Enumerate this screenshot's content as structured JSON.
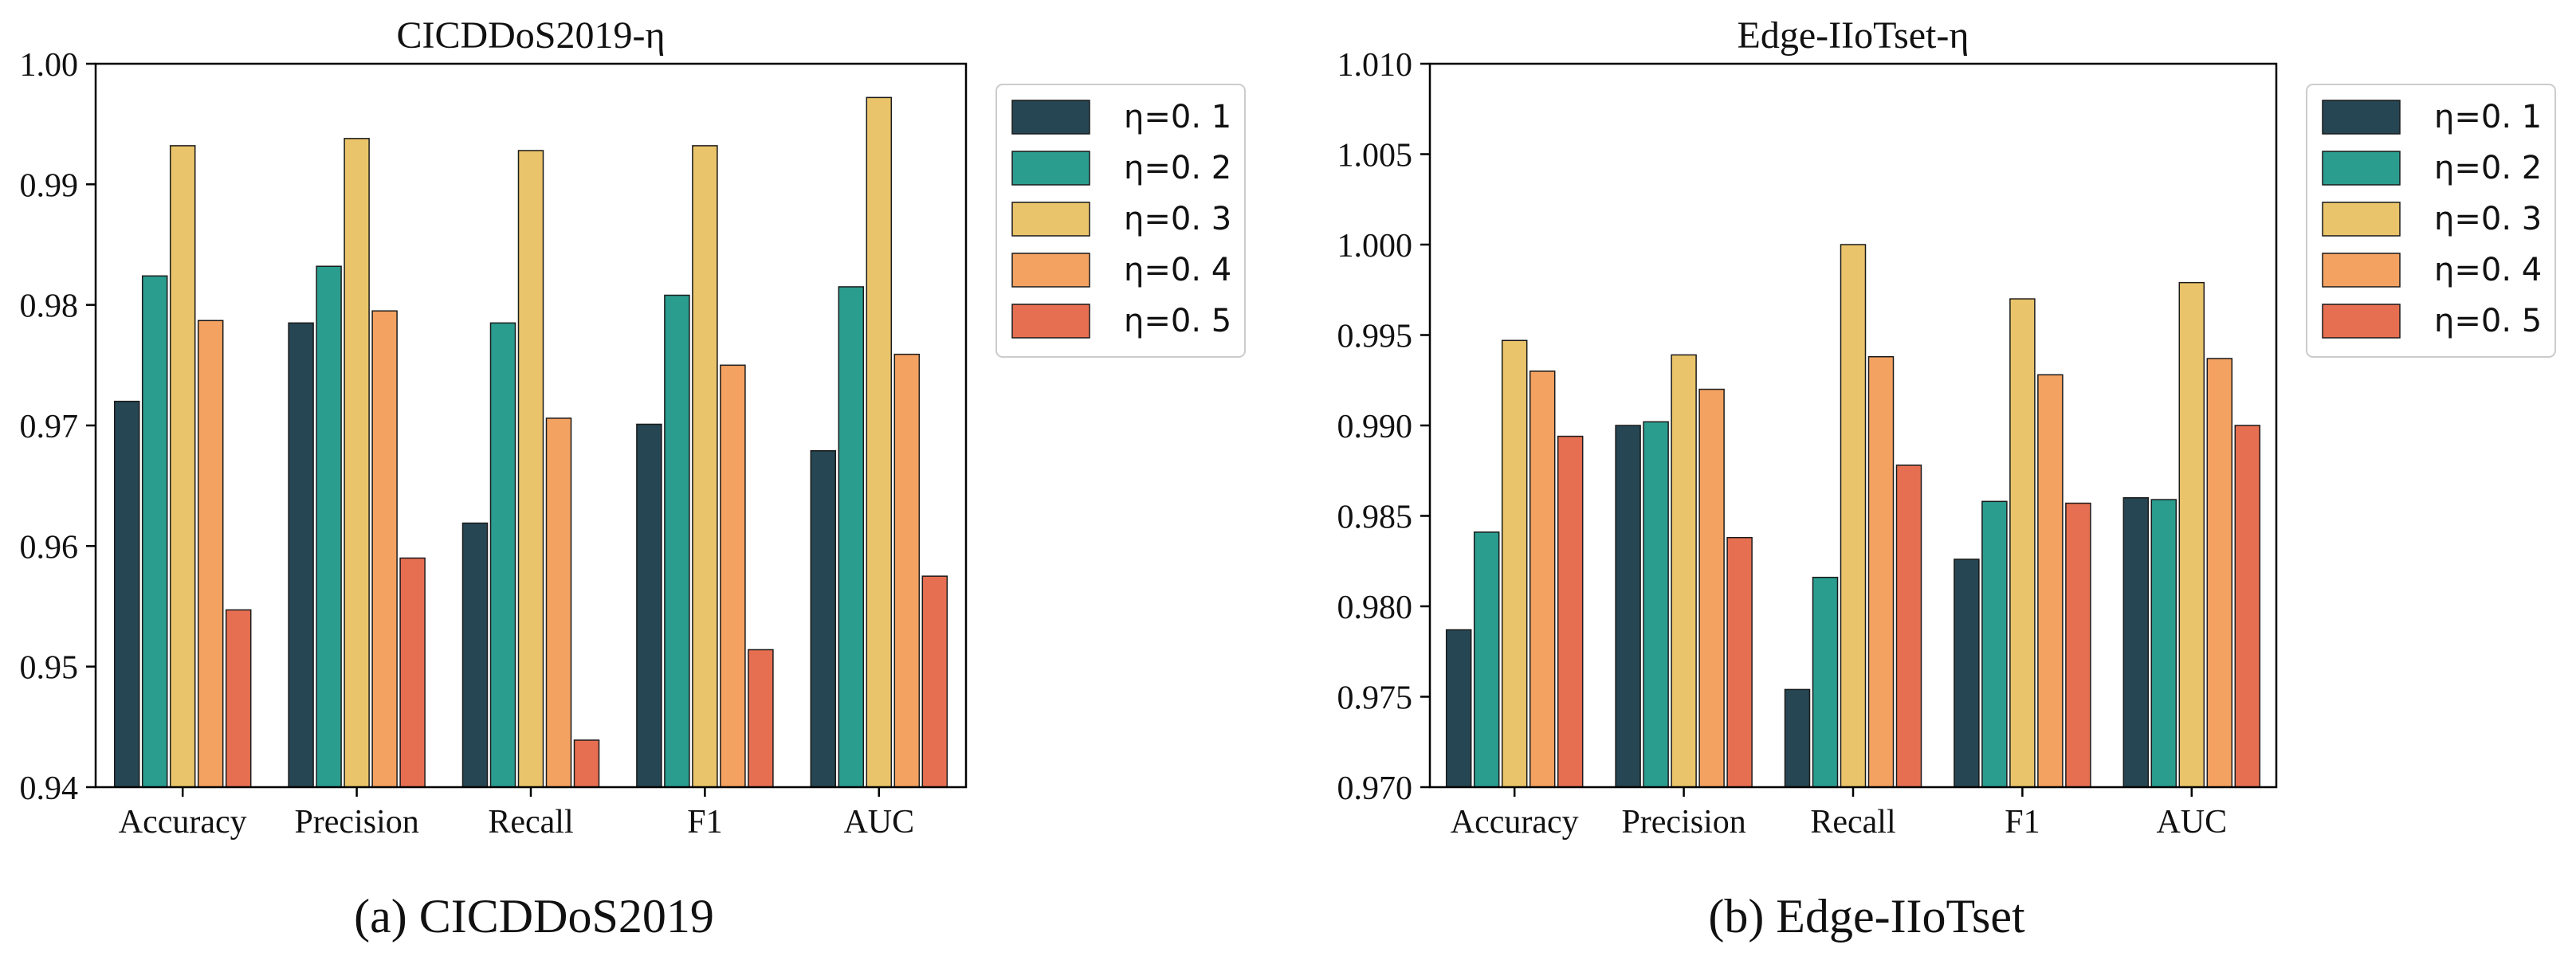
{
  "chart_data": [
    {
      "type": "bar",
      "title": "CICDDoS2019-η",
      "caption": "(a) CICDDoS2019",
      "categories": [
        "Accuracy",
        "Precision",
        "Recall",
        "F1",
        "AUC"
      ],
      "series": [
        {
          "name": "η=0. 1",
          "color": "#264653",
          "values": [
            0.972,
            0.9785,
            0.9619,
            0.9701,
            0.9679
          ]
        },
        {
          "name": "η=0. 2",
          "color": "#2A9D8F",
          "values": [
            0.9824,
            0.9832,
            0.9785,
            0.9808,
            0.9815
          ]
        },
        {
          "name": "η=0. 3",
          "color": "#E9C46A",
          "values": [
            0.9932,
            0.9938,
            0.9928,
            0.9932,
            0.9972
          ]
        },
        {
          "name": "η=0. 4",
          "color": "#F4A261",
          "values": [
            0.9787,
            0.9795,
            0.9706,
            0.975,
            0.9759
          ]
        },
        {
          "name": "η=0. 5",
          "color": "#E76F51",
          "values": [
            0.9547,
            0.959,
            0.9439,
            0.9514,
            0.9575
          ]
        }
      ],
      "ylim": [
        0.94,
        1.0
      ],
      "yticks": [
        "0.94",
        "0.95",
        "0.96",
        "0.97",
        "0.98",
        "0.99",
        "1.00"
      ],
      "xlabel": "",
      "ylabel": "",
      "legend": "outside-right-top",
      "grid": false
    },
    {
      "type": "bar",
      "title": "Edge-IIoTset-η",
      "caption": "(b) Edge-IIoTset",
      "categories": [
        "Accuracy",
        "Precision",
        "Recall",
        "F1",
        "AUC"
      ],
      "series": [
        {
          "name": "η=0. 1",
          "color": "#264653",
          "values": [
            0.9787,
            0.99,
            0.9754,
            0.9826,
            0.986
          ]
        },
        {
          "name": "η=0. 2",
          "color": "#2A9D8F",
          "values": [
            0.9841,
            0.9902,
            0.9816,
            0.9858,
            0.9859
          ]
        },
        {
          "name": "η=0. 3",
          "color": "#E9C46A",
          "values": [
            0.9947,
            0.9939,
            1.0,
            0.997,
            0.9979
          ]
        },
        {
          "name": "η=0. 4",
          "color": "#F4A261",
          "values": [
            0.993,
            0.992,
            0.9938,
            0.9928,
            0.9937
          ]
        },
        {
          "name": "η=0. 5",
          "color": "#E76F51",
          "values": [
            0.9894,
            0.9838,
            0.9878,
            0.9857,
            0.99
          ]
        }
      ],
      "ylim": [
        0.97,
        1.01
      ],
      "yticks": [
        "0.970",
        "0.975",
        "0.980",
        "0.985",
        "0.990",
        "0.995",
        "1.000",
        "1.005",
        "1.010"
      ],
      "xlabel": "",
      "ylabel": "",
      "legend": "outside-right-top",
      "grid": false
    }
  ]
}
